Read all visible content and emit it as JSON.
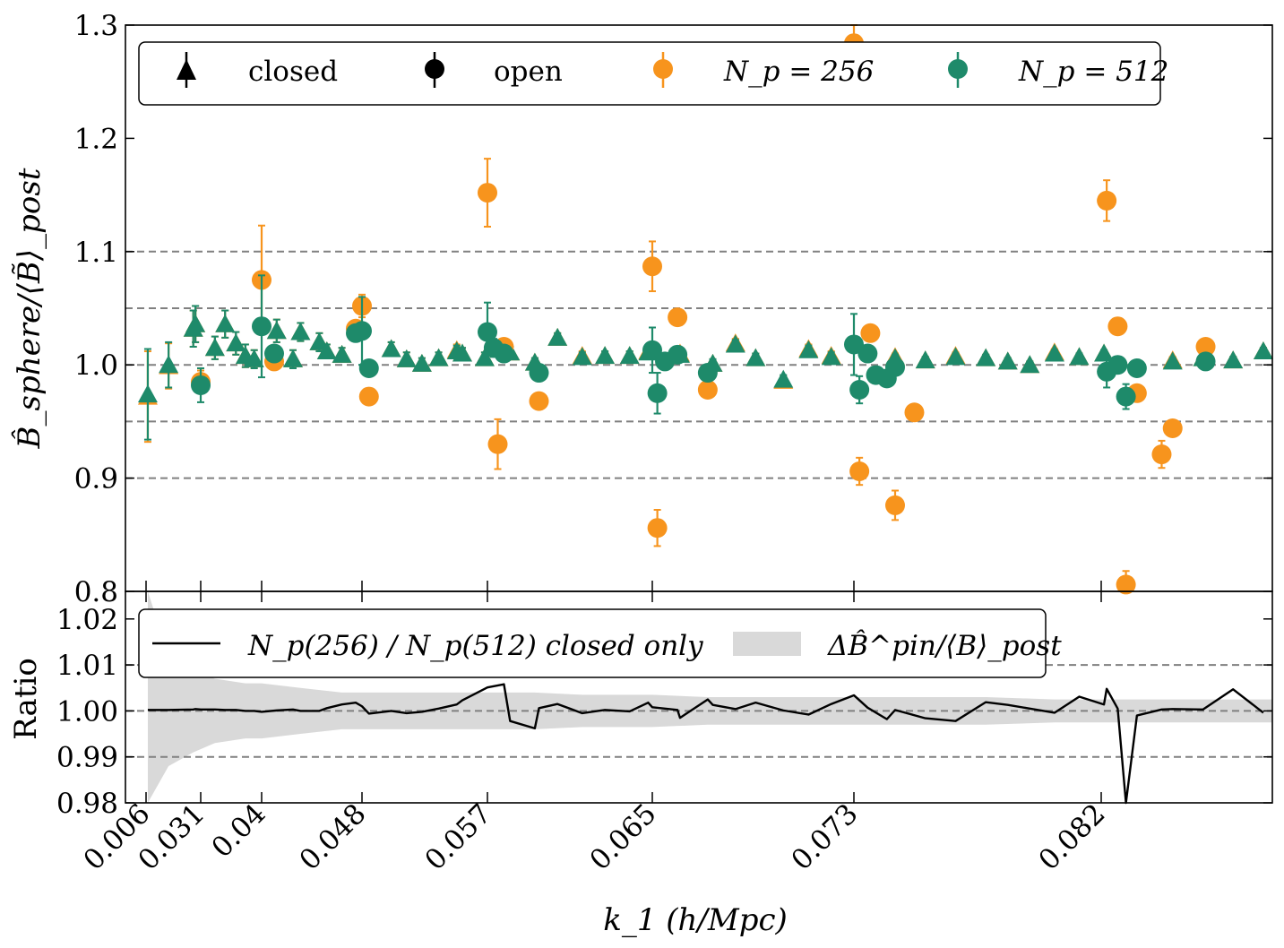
{
  "colors": {
    "np256": "#f7941d",
    "np512": "#1e8a6a",
    "ratio_line": "#000000",
    "band": "#d9d9d9",
    "dash": "#808080"
  },
  "legend_top": {
    "closed": "closed",
    "open": "open",
    "np256": "N_p = 256",
    "np512": "N_p = 512"
  },
  "legend_bottom": {
    "line": "N_p(256) / N_p(512) closed only",
    "band": "ΔB̂^pin/⟨B⟩_post"
  },
  "chart_data": [
    {
      "type": "scatter",
      "ylabel": "B̂_sphere/⟨B̃⟩_post",
      "xlabel": "k_1 (h/Mpc)",
      "ylim": [
        0.8,
        1.3
      ],
      "yticks": [
        0.8,
        0.9,
        1.0,
        1.1,
        1.2,
        1.3
      ],
      "ytick_labels": [
        "0.8",
        "0.9",
        "1.0",
        "1.1",
        "1.2",
        "1.3"
      ],
      "xticks": [
        0.006,
        0.031,
        0.04,
        0.048,
        0.057,
        0.065,
        0.073,
        0.082
      ],
      "xtick_labels": [
        "0.006",
        "0.031",
        "0.04",
        "0.048",
        "0.057",
        "0.065",
        "0.073",
        "0.082"
      ],
      "reference_lines": [
        0.9,
        0.95,
        1.0,
        1.05,
        1.1
      ],
      "grid": false,
      "legend_placement": "top",
      "series": [
        {
          "name": "closed N_p = 256",
          "color_key": "np256",
          "marker": "triangle",
          "x": [
            0.0068,
            0.0163,
            0.0276,
            0.0286,
            0.0331,
            0.0346,
            0.0362,
            0.0376,
            0.0389,
            0.0412,
            0.0425,
            0.0431,
            0.0446,
            0.0452,
            0.0464,
            0.0501,
            0.0512,
            0.0523,
            0.0535,
            0.0548,
            0.0552,
            0.0568,
            0.0581,
            0.0593,
            0.0604,
            0.0616,
            0.0627,
            0.0639,
            0.0648,
            0.0661,
            0.0674,
            0.0683,
            0.0691,
            0.0702,
            0.0712,
            0.0721,
            0.0745,
            0.0756,
            0.0767,
            0.0778,
            0.0786,
            0.0794,
            0.0803,
            0.0812,
            0.0821,
            0.0846,
            0.0857,
            0.0868,
            0.0879
          ],
          "y": [
            0.972,
            0.999,
            1.032,
            1.036,
            1.015,
            1.036,
            1.019,
            1.008,
            1.005,
            1.03,
            1.005,
            1.029,
            1.02,
            1.012,
            1.009,
            1.014,
            1.005,
            1.001,
            1.006,
            1.013,
            1.01,
            1.006,
            1.011,
            1.002,
            1.024,
            1.008,
            1.008,
            1.008,
            1.012,
            1.01,
            1.001,
            1.019,
            1.006,
            0.986,
            1.014,
            1.008,
            1.007,
            1.004,
            1.008,
            1.006,
            1.003,
            1.0,
            1.011,
            1.007,
            1.01,
            1.004,
            1.006,
            1.004,
            1.012
          ],
          "yerr": [
            0.04,
            0.02,
            0.016,
            0.016,
            0.01,
            0.012,
            0.01,
            0.01,
            0.008,
            0.01,
            0.008,
            0.008,
            0.008,
            0.006,
            0.006,
            0.006,
            0.006,
            0.005,
            0.005,
            0.005,
            0.005,
            0.005,
            0.005,
            0.004,
            0.004,
            0.004,
            0.004,
            0.004,
            0.004,
            0.004,
            0.004,
            0.004,
            0.004,
            0.004,
            0.004,
            0.004,
            0.003,
            0.003,
            0.003,
            0.003,
            0.003,
            0.003,
            0.003,
            0.003,
            0.003,
            0.003,
            0.003,
            0.003,
            0.003
          ]
        },
        {
          "name": "closed N_p = 512",
          "color_key": "np512",
          "marker": "triangle",
          "x": [
            0.0068,
            0.0163,
            0.0276,
            0.0286,
            0.0331,
            0.0346,
            0.0362,
            0.0376,
            0.0389,
            0.0412,
            0.0425,
            0.0431,
            0.0446,
            0.0452,
            0.0464,
            0.0501,
            0.0512,
            0.0523,
            0.0535,
            0.0548,
            0.0552,
            0.0568,
            0.0581,
            0.0593,
            0.0604,
            0.0616,
            0.0627,
            0.0639,
            0.0648,
            0.0661,
            0.0674,
            0.0683,
            0.0691,
            0.0702,
            0.0712,
            0.0721,
            0.0745,
            0.0756,
            0.0767,
            0.0778,
            0.0786,
            0.0794,
            0.0803,
            0.0812,
            0.0821,
            0.0846,
            0.0857,
            0.0868,
            0.0879
          ],
          "y": [
            0.974,
            1.0,
            1.032,
            1.036,
            1.015,
            1.036,
            1.019,
            1.008,
            1.005,
            1.03,
            1.005,
            1.029,
            1.02,
            1.012,
            1.009,
            1.014,
            1.005,
            1.001,
            1.006,
            1.012,
            1.01,
            1.006,
            1.011,
            1.002,
            1.024,
            1.007,
            1.008,
            1.008,
            1.011,
            1.009,
            1.001,
            1.018,
            1.006,
            0.987,
            1.013,
            1.007,
            1.006,
            1.004,
            1.007,
            1.006,
            1.003,
            1.0,
            1.01,
            1.007,
            1.01,
            1.003,
            1.006,
            1.004,
            1.012
          ],
          "yerr": [
            0.04,
            0.02,
            0.016,
            0.016,
            0.01,
            0.012,
            0.01,
            0.01,
            0.008,
            0.01,
            0.008,
            0.008,
            0.008,
            0.006,
            0.006,
            0.006,
            0.006,
            0.005,
            0.005,
            0.005,
            0.005,
            0.005,
            0.005,
            0.004,
            0.004,
            0.004,
            0.004,
            0.004,
            0.004,
            0.004,
            0.004,
            0.004,
            0.004,
            0.004,
            0.004,
            0.004,
            0.003,
            0.003,
            0.003,
            0.003,
            0.003,
            0.003,
            0.003,
            0.003,
            0.003,
            0.003,
            0.003,
            0.003,
            0.003
          ]
        },
        {
          "name": "open N_p = 256",
          "color_key": "np256",
          "marker": "circle",
          "x": [
            0.031,
            0.04,
            0.041,
            0.0475,
            0.048,
            0.0485,
            0.057,
            0.0575,
            0.0578,
            0.0595,
            0.065,
            0.0652,
            0.066,
            0.0672,
            0.073,
            0.0732,
            0.0736,
            0.0745,
            0.0752,
            0.0822,
            0.0826,
            0.0829,
            0.0833,
            0.0842,
            0.0846,
            0.0858
          ],
          "y": [
            0.985,
            1.075,
            1.003,
            1.032,
            1.052,
            0.972,
            1.152,
            0.93,
            1.016,
            0.968,
            1.087,
            0.856,
            1.042,
            0.978,
            1.284,
            0.906,
            1.028,
            0.876,
            0.958,
            1.145,
            1.034,
            0.806,
            0.975,
            0.921,
            0.944,
            1.016
          ],
          "yerr": [
            0.01,
            0.048,
            0.006,
            0.005,
            0.01,
            0.004,
            0.03,
            0.022,
            0.005,
            0.004,
            0.022,
            0.016,
            0.005,
            0.004,
            0.035,
            0.012,
            0.005,
            0.013,
            0.004,
            0.018,
            0.005,
            0.012,
            0.005,
            0.012,
            0.004,
            0.004
          ]
        },
        {
          "name": "open N_p = 512",
          "color_key": "np512",
          "marker": "circle",
          "x": [
            0.031,
            0.04,
            0.041,
            0.0475,
            0.048,
            0.0485,
            0.057,
            0.0573,
            0.0578,
            0.0595,
            0.065,
            0.0652,
            0.0655,
            0.066,
            0.0672,
            0.073,
            0.0732,
            0.0735,
            0.0738,
            0.0742,
            0.0745,
            0.0822,
            0.0826,
            0.0829,
            0.0833,
            0.0858
          ],
          "y": [
            0.982,
            1.034,
            1.01,
            1.028,
            1.03,
            0.997,
            1.029,
            1.015,
            1.01,
            0.993,
            1.013,
            0.975,
            1.003,
            1.009,
            0.993,
            1.018,
            0.978,
            1.01,
            0.991,
            0.988,
            0.998,
            0.994,
            1.0,
            0.972,
            0.997,
            1.003
          ],
          "yerr": [
            0.015,
            0.045,
            0.006,
            0.006,
            0.03,
            0.005,
            0.026,
            0.008,
            0.005,
            0.005,
            0.02,
            0.018,
            0.005,
            0.005,
            0.005,
            0.027,
            0.012,
            0.005,
            0.005,
            0.005,
            0.005,
            0.014,
            0.005,
            0.011,
            0.005,
            0.005
          ]
        }
      ]
    },
    {
      "type": "line",
      "ylabel": "Ratio",
      "xlabel": "k_1 (h/Mpc)",
      "ylim": [
        0.98,
        1.026
      ],
      "yticks": [
        0.98,
        0.99,
        1.0,
        1.01,
        1.02
      ],
      "ytick_labels": [
        "0.98",
        "0.99",
        "1.00",
        "1.01",
        "1.02"
      ],
      "reference_lines": [
        0.99,
        1.0,
        1.01
      ],
      "grid": false,
      "legend_placement": "top",
      "ratio_series": {
        "name": "N_p(256) / N_p(512) closed only",
        "x": [
          0.0068,
          0.0163,
          0.0276,
          0.0286,
          0.031,
          0.0331,
          0.0346,
          0.0362,
          0.0376,
          0.0389,
          0.04,
          0.0412,
          0.0425,
          0.0431,
          0.0446,
          0.0452,
          0.0464,
          0.0475,
          0.048,
          0.0485,
          0.0501,
          0.0512,
          0.0523,
          0.0535,
          0.0548,
          0.0552,
          0.057,
          0.0578,
          0.0581,
          0.0593,
          0.0595,
          0.0604,
          0.0616,
          0.0627,
          0.0639,
          0.0648,
          0.065,
          0.066,
          0.0661,
          0.0672,
          0.0674,
          0.0683,
          0.0691,
          0.0702,
          0.0712,
          0.0721,
          0.073,
          0.0735,
          0.0742,
          0.0745,
          0.0756,
          0.0767,
          0.0778,
          0.0786,
          0.0794,
          0.0803,
          0.0812,
          0.0821,
          0.0822,
          0.0826,
          0.0829,
          0.0833,
          0.0842,
          0.0846,
          0.0857,
          0.0868,
          0.0879
        ],
        "y": [
          1.0002,
          1.0002,
          1.0003,
          1.0004,
          1.0003,
          1.0003,
          1.0002,
          1.0002,
          1.0,
          1.0,
          0.9998,
          1.0001,
          1.0003,
          1.0,
          1.0,
          1.0006,
          1.0014,
          1.0018,
          1.001,
          0.9994,
          1.0,
          0.9995,
          0.9998,
          1.0005,
          1.0014,
          1.0023,
          1.0051,
          1.0058,
          0.9978,
          0.9962,
          1.0006,
          1.0015,
          0.9995,
          1.0002,
          0.9999,
          1.0018,
          1.0008,
          1.0002,
          0.9985,
          1.0025,
          1.0013,
          1.0004,
          1.0018,
          1.0001,
          0.9992,
          1.0015,
          1.0034,
          1.0007,
          0.9982,
          1.0002,
          0.9984,
          0.9978,
          1.0019,
          1.0013,
          1.0005,
          0.9996,
          1.0031,
          1.0014,
          1.0048,
          1.0005,
          0.9795,
          0.999,
          1.0003,
          1.0004,
          1.0003,
          1.0047,
          0.9996
        ]
      },
      "band_series": {
        "name": "ΔB̂^pin/⟨B⟩_post",
        "x": [
          0.0068,
          0.0163,
          0.0276,
          0.0331,
          0.0376,
          0.04,
          0.0431,
          0.0464,
          0.048,
          0.0512,
          0.0535,
          0.057,
          0.0593,
          0.0616,
          0.0639,
          0.065,
          0.0672,
          0.0691,
          0.0712,
          0.073,
          0.0756,
          0.0778,
          0.0803,
          0.0822,
          0.0846,
          0.0868,
          0.0879
        ],
        "half_width": [
          0.026,
          0.012,
          0.009,
          0.007,
          0.006,
          0.006,
          0.005,
          0.004,
          0.004,
          0.004,
          0.004,
          0.004,
          0.004,
          0.0035,
          0.0035,
          0.0035,
          0.003,
          0.003,
          0.003,
          0.003,
          0.003,
          0.003,
          0.0025,
          0.0025,
          0.0025,
          0.0025,
          0.0025
        ]
      }
    }
  ]
}
